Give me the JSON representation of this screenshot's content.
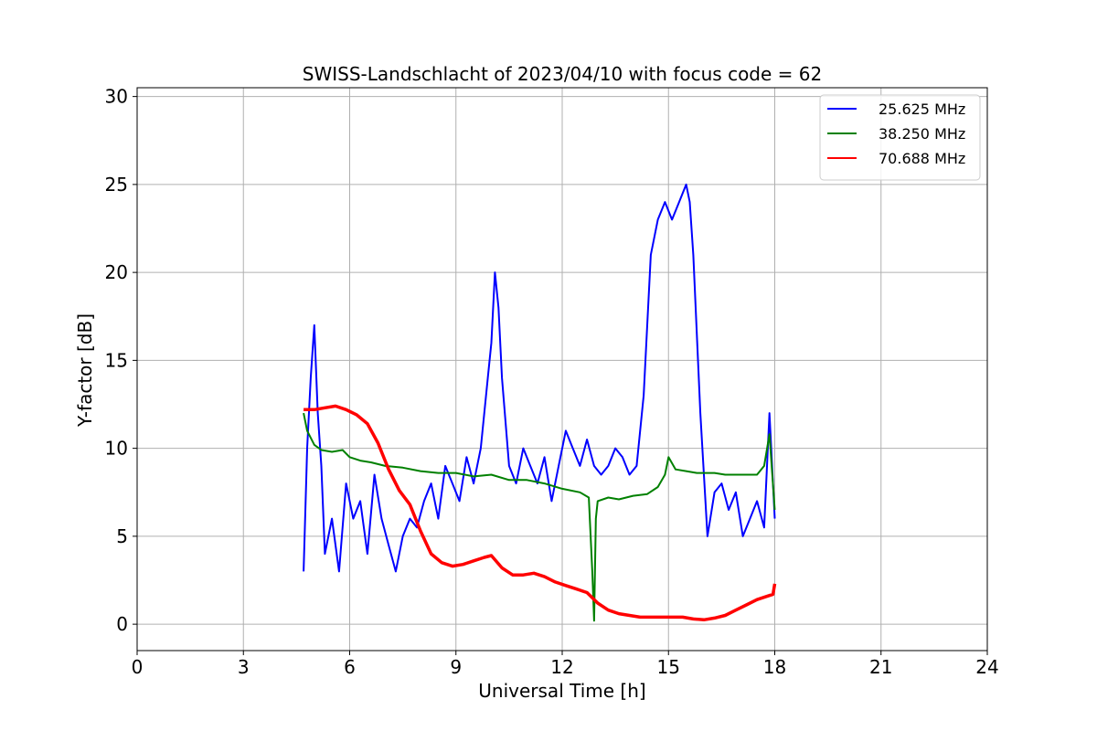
{
  "chart_data": {
    "type": "line",
    "title": "SWISS-Landschlacht of 2023/04/10 with focus code = 62",
    "xlabel": "Universal Time [h]",
    "ylabel": "Y-factor [dB]",
    "xlim": [
      0,
      24
    ],
    "ylim": [
      -1.5,
      30.5
    ],
    "xticks": [
      0,
      3,
      6,
      9,
      12,
      15,
      18,
      21,
      24
    ],
    "yticks": [
      0,
      5,
      10,
      15,
      20,
      25,
      30
    ],
    "grid": true,
    "legend_position": "top-right",
    "series": [
      {
        "name": "25.625 MHz",
        "color": "#0000ff",
        "x": [
          4.7,
          4.8,
          4.9,
          5.0,
          5.1,
          5.2,
          5.3,
          5.5,
          5.7,
          5.9,
          6.1,
          6.3,
          6.5,
          6.7,
          6.9,
          7.1,
          7.3,
          7.5,
          7.7,
          7.9,
          8.1,
          8.3,
          8.5,
          8.7,
          8.9,
          9.1,
          9.3,
          9.5,
          9.7,
          9.9,
          10.0,
          10.1,
          10.2,
          10.3,
          10.5,
          10.7,
          10.9,
          11.1,
          11.3,
          11.5,
          11.7,
          11.9,
          12.1,
          12.3,
          12.5,
          12.7,
          12.9,
          13.1,
          13.3,
          13.5,
          13.7,
          13.9,
          14.1,
          14.3,
          14.5,
          14.7,
          14.9,
          15.1,
          15.3,
          15.5,
          15.6,
          15.7,
          15.9,
          16.1,
          16.3,
          16.5,
          16.7,
          16.9,
          17.1,
          17.3,
          17.5,
          17.7,
          17.85,
          18.0
        ],
        "values": [
          3.0,
          10.0,
          14.0,
          17.0,
          12.0,
          9.0,
          4.0,
          6.0,
          3.0,
          8.0,
          6.0,
          7.0,
          4.0,
          8.5,
          6.0,
          4.5,
          3.0,
          5.0,
          6.0,
          5.5,
          7.0,
          8.0,
          6.0,
          9.0,
          8.0,
          7.0,
          9.5,
          8.0,
          10.0,
          14.0,
          16.0,
          20.0,
          18.0,
          14.0,
          9.0,
          8.0,
          10.0,
          9.0,
          8.0,
          9.5,
          7.0,
          9.0,
          11.0,
          10.0,
          9.0,
          10.5,
          9.0,
          8.5,
          9.0,
          10.0,
          9.5,
          8.5,
          9.0,
          13.0,
          21.0,
          23.0,
          24.0,
          23.0,
          24.0,
          25.0,
          24.0,
          21.0,
          12.0,
          5.0,
          7.5,
          8.0,
          6.5,
          7.5,
          5.0,
          6.0,
          7.0,
          5.5,
          12.0,
          6.0
        ]
      },
      {
        "name": "38.250 MHz",
        "color": "#008000",
        "x": [
          4.7,
          4.8,
          5.0,
          5.2,
          5.5,
          5.8,
          6.0,
          6.3,
          6.6,
          7.0,
          7.5,
          8.0,
          8.5,
          9.0,
          9.5,
          10.0,
          10.5,
          11.0,
          11.5,
          12.0,
          12.5,
          12.75,
          12.85,
          12.9,
          12.95,
          13.0,
          13.3,
          13.6,
          14.0,
          14.4,
          14.7,
          14.9,
          15.0,
          15.2,
          15.5,
          15.8,
          16.0,
          16.3,
          16.6,
          17.0,
          17.5,
          17.7,
          17.85,
          18.0
        ],
        "values": [
          12.0,
          11.0,
          10.2,
          9.9,
          9.8,
          9.9,
          9.5,
          9.3,
          9.2,
          9.0,
          8.9,
          8.7,
          8.6,
          8.6,
          8.4,
          8.5,
          8.2,
          8.2,
          8.0,
          7.7,
          7.5,
          7.2,
          3.0,
          0.2,
          6.0,
          7.0,
          7.2,
          7.1,
          7.3,
          7.4,
          7.8,
          8.5,
          9.5,
          8.8,
          8.7,
          8.6,
          8.6,
          8.6,
          8.5,
          8.5,
          8.5,
          9.0,
          10.8,
          6.5
        ]
      },
      {
        "name": "70.688 MHz",
        "color": "#ff0000",
        "x": [
          4.7,
          5.0,
          5.3,
          5.6,
          5.9,
          6.2,
          6.5,
          6.8,
          7.1,
          7.4,
          7.7,
          8.0,
          8.3,
          8.6,
          8.9,
          9.2,
          9.5,
          9.8,
          10.0,
          10.3,
          10.6,
          10.9,
          11.2,
          11.5,
          11.8,
          12.1,
          12.4,
          12.7,
          13.0,
          13.3,
          13.6,
          13.9,
          14.2,
          14.5,
          14.8,
          15.1,
          15.4,
          15.7,
          16.0,
          16.3,
          16.6,
          16.9,
          17.2,
          17.5,
          17.8,
          17.95,
          18.0
        ],
        "values": [
          12.2,
          12.2,
          12.3,
          12.4,
          12.2,
          11.9,
          11.4,
          10.3,
          8.8,
          7.6,
          6.8,
          5.3,
          4.0,
          3.5,
          3.3,
          3.4,
          3.6,
          3.8,
          3.9,
          3.2,
          2.8,
          2.8,
          2.9,
          2.7,
          2.4,
          2.2,
          2.0,
          1.8,
          1.2,
          0.8,
          0.6,
          0.5,
          0.4,
          0.4,
          0.4,
          0.4,
          0.4,
          0.3,
          0.25,
          0.35,
          0.5,
          0.8,
          1.1,
          1.4,
          1.6,
          1.7,
          2.3
        ]
      }
    ]
  }
}
